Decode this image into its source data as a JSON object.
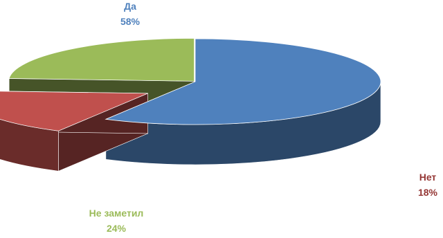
{
  "chart_data": {
    "type": "pie",
    "style": "3d-exploded",
    "title": "",
    "slices": [
      {
        "label": "Да",
        "value": 58,
        "value_label": "58%",
        "color": "#4F81BD"
      },
      {
        "label": "Нет",
        "value": 18,
        "value_label": "18%",
        "color": "#C0504D"
      },
      {
        "label": "Не заметил",
        "value": 24,
        "value_label": "24%",
        "color": "#9BBB59"
      }
    ]
  }
}
